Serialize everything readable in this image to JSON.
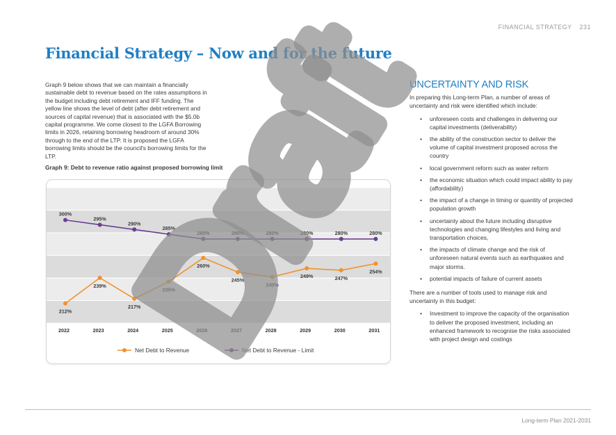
{
  "header": {
    "section": "FINANCIAL STRATEGY",
    "page_number": "231"
  },
  "title": "Financial Strategy – Now and for the future",
  "intro": "Graph 9 below shows that we can maintain a financially sustainable debt to revenue based on the rates assumptions in the budget including debt retirement and IFF funding. The yellow line shows the level of debt (after debt retirement and sources of capital revenue) that is associated with the $5.0b capital programme. We come closest to the LGFA Borrowing limits in 2026, retaining borrowing headroom of around 30% through to the end of the LTP. It is proposed the LGFA borrowing limits should be the council's borrowing limits for the LTP.",
  "graph_caption": "Graph 9: Debt to revenue ratio against proposed borrowing limit",
  "chart_data": {
    "type": "line",
    "categories": [
      "2022",
      "2023",
      "2024",
      "2025",
      "2026",
      "2027",
      "2028",
      "2029",
      "2030",
      "2031"
    ],
    "series": [
      {
        "name": "Net Debt to Revenue",
        "color": "#f0922b",
        "values": [
          212,
          239,
          217,
          235,
          260,
          245,
          240,
          249,
          247,
          254
        ],
        "labels": [
          "212%",
          "239%",
          "217%",
          "235%",
          "260%",
          "245%",
          "240%",
          "249%",
          "247%",
          "254%"
        ]
      },
      {
        "name": "Net Debt to Revenue - Limit",
        "color": "#6b3f8f",
        "values": [
          300,
          295,
          290,
          285,
          280,
          280,
          280,
          280,
          280,
          280
        ],
        "labels": [
          "300%",
          "295%",
          "290%",
          "285%",
          "280%",
          "280%",
          "280%",
          "280%",
          "280%",
          "280%"
        ]
      }
    ],
    "ylim": [
      0,
      320
    ],
    "grid": true,
    "legend": "bottom"
  },
  "right": {
    "heading": "UNCERTAINTY AND RISK",
    "para1": "In preparing this Long-term Plan, a number of areas of uncertainty and risk were identified which include:",
    "bullets1": [
      "unforeseen costs and challenges in delivering our capital investments (deliverability)",
      "the ability of the construction sector to deliver the volume of capital investment proposed across the country",
      "local government reform such as water reform",
      "the economic situation which could impact ability to pay (affordability)",
      "the impact of a change in timing or quantity of projected population growth",
      "uncertainty about the future including disruptive technologies and changing lifestyles and living and transportation choices,",
      "the impacts of climate change and the risk of unforeseen natural events such as earthquakes and major storms.",
      "potential impacts of failure of current assets"
    ],
    "para2": "There are a number of tools used to manage risk and uncertainty in this budget:",
    "bullets2": [
      "Investment to improve the capacity of the organisation to deliver the proposed investment, including an enhanced framework to recognise the risks associated with project design and costings"
    ],
    "bullet_glyph": "•"
  },
  "footer": "Long-term Plan 2021-2031",
  "watermark": "Draft"
}
